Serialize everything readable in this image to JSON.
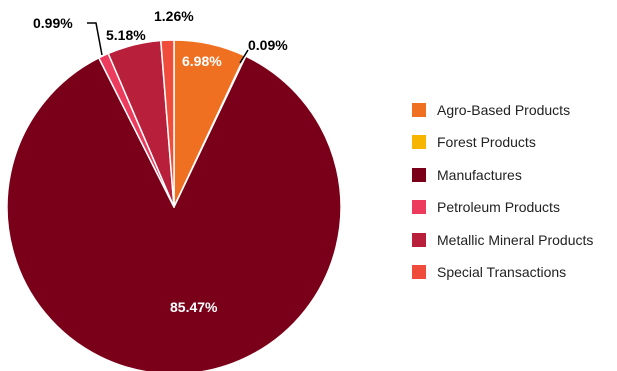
{
  "chart_data": {
    "type": "pie",
    "categories": [
      "Agro-Based Products",
      "Forest Products",
      "Manufactures",
      "Petroleum Products",
      "Metallic Mineral Products",
      "Special Transactions"
    ],
    "values": [
      6.98,
      0.09,
      85.47,
      0.99,
      5.18,
      1.26
    ],
    "labels": [
      "6.98%",
      "0.09%",
      "85.47%",
      "0.99%",
      "5.18%",
      "1.26%"
    ],
    "colors": [
      "#f07021",
      "#f7b500",
      "#7a0019",
      "#ec3b5c",
      "#b81f3a",
      "#ef4c3c"
    ],
    "legend_position": "right",
    "title": ""
  }
}
